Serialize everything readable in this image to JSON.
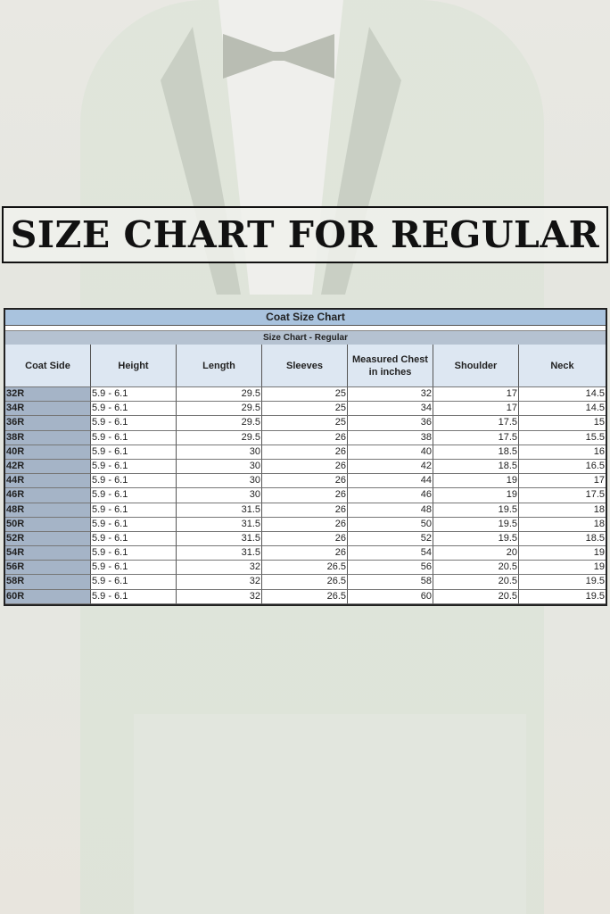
{
  "banner": {
    "title": "SIZE CHART FOR REGULAR"
  },
  "table": {
    "title": "Coat Size Chart",
    "subtitle": "Size Chart - Regular",
    "columns": [
      "Coat Side",
      "Height",
      "Length",
      "Sleeves",
      "Measured Chest in inches",
      "Shoulder",
      "Neck"
    ],
    "rows": [
      [
        "32R",
        "5.9 - 6.1",
        "29.5",
        "25",
        "32",
        "17",
        "14.5"
      ],
      [
        "34R",
        "5.9 - 6.1",
        "29.5",
        "25",
        "34",
        "17",
        "14.5"
      ],
      [
        "36R",
        "5.9 - 6.1",
        "29.5",
        "25",
        "36",
        "17.5",
        "15"
      ],
      [
        "38R",
        "5.9 - 6.1",
        "29.5",
        "26",
        "38",
        "17.5",
        "15.5"
      ],
      [
        "40R",
        "5.9 - 6.1",
        "30",
        "26",
        "40",
        "18.5",
        "16"
      ],
      [
        "42R",
        "5.9 - 6.1",
        "30",
        "26",
        "42",
        "18.5",
        "16.5"
      ],
      [
        "44R",
        "5.9 - 6.1",
        "30",
        "26",
        "44",
        "19",
        "17"
      ],
      [
        "46R",
        "5.9 - 6.1",
        "30",
        "26",
        "46",
        "19",
        "17.5"
      ],
      [
        "48R",
        "5.9 - 6.1",
        "31.5",
        "26",
        "48",
        "19.5",
        "18"
      ],
      [
        "50R",
        "5.9 - 6.1",
        "31.5",
        "26",
        "50",
        "19.5",
        "18"
      ],
      [
        "52R",
        "5.9 - 6.1",
        "31.5",
        "26",
        "52",
        "19.5",
        "18.5"
      ],
      [
        "54R",
        "5.9 - 6.1",
        "31.5",
        "26",
        "54",
        "20",
        "19"
      ],
      [
        "56R",
        "5.9 - 6.1",
        "32",
        "26.5",
        "56",
        "20.5",
        "19"
      ],
      [
        "58R",
        "5.9 - 6.1",
        "32",
        "26.5",
        "58",
        "20.5",
        "19.5"
      ],
      [
        "60R",
        "5.9 - 6.1",
        "32",
        "26.5",
        "60",
        "20.5",
        "19.5"
      ]
    ]
  },
  "colors": {
    "title_bar": "#a9c3de",
    "subtitle_bar": "#b5c2d1",
    "header_bg": "#dde7f2",
    "size_col": "#a5b4c7"
  }
}
